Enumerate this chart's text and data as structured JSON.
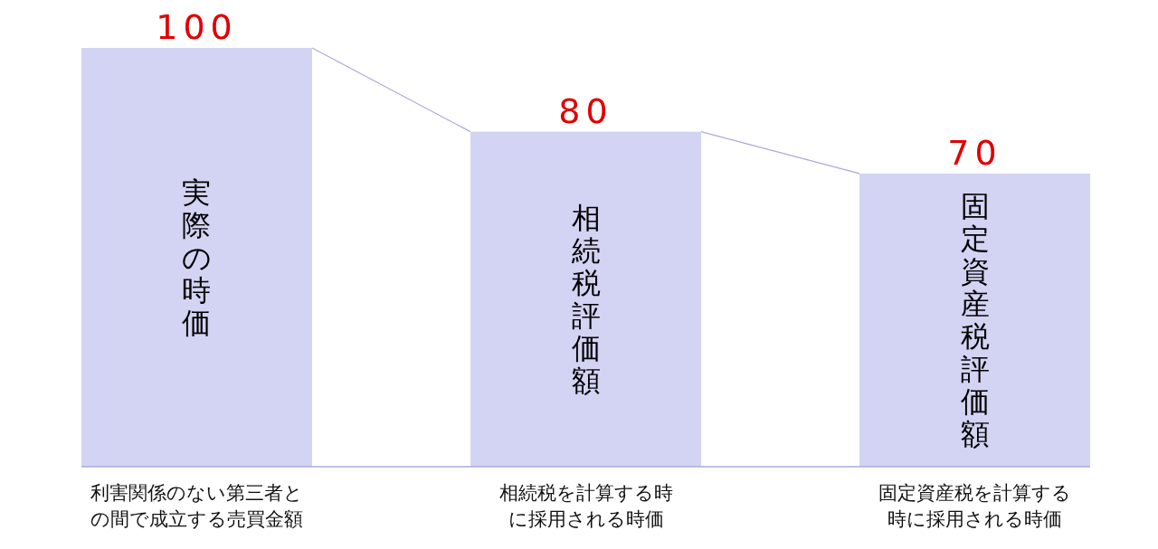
{
  "chart_data": {
    "type": "bar",
    "categories": [
      "利害関係のない第三者との間で成立する売買金額",
      "相続税を計算する時に採用される時価",
      "固定資産税を計算する時に採用される時価"
    ],
    "values": [
      100,
      80,
      70
    ],
    "color": "#d3d3f3",
    "data_labels": true,
    "annotations": [
      "実際の時価",
      "相続税評価額",
      "固定資産税評価額"
    ]
  }
}
